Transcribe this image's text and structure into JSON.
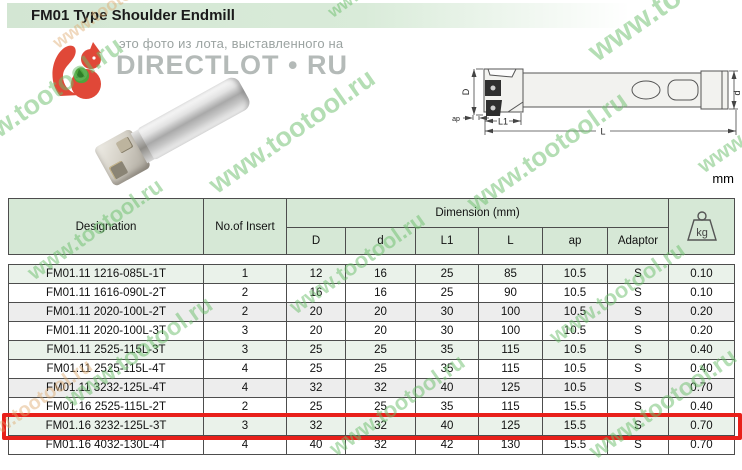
{
  "page": {
    "title": "FM01 Type Shoulder Endmill",
    "units_label": "mm"
  },
  "watermark": {
    "caption": "это фото из лота, выставленного на",
    "brand": "DIRECTLOT • RU",
    "tile": "www.tootool.ru"
  },
  "diagram": {
    "labels": {
      "D": "D",
      "d": "d",
      "L1": "L1",
      "L": "L",
      "ap": "ap"
    }
  },
  "table": {
    "headers": {
      "designation": "Designation",
      "no_of_insert": "No.of Insert",
      "dimension_group": "Dimension (mm)",
      "dims": [
        "D",
        "d",
        "L1",
        "L",
        "ap",
        "Adaptor"
      ],
      "weight_unit": "kg"
    },
    "highlight_color": "#e8201a",
    "rows": [
      {
        "designation": "FM01.11 1216-085L-1T",
        "inserts": "1",
        "D": "12",
        "d": "16",
        "L1": "25",
        "L": "85",
        "ap": "10.5",
        "adaptor": "S",
        "kg": "0.10",
        "highlight": false
      },
      {
        "designation": "FM01.11 1616-090L-2T",
        "inserts": "2",
        "D": "16",
        "d": "16",
        "L1": "25",
        "L": "90",
        "ap": "10.5",
        "adaptor": "S",
        "kg": "0.10",
        "highlight": false
      },
      {
        "designation": "FM01.11 2020-100L-2T",
        "inserts": "2",
        "D": "20",
        "d": "20",
        "L1": "30",
        "L": "100",
        "ap": "10.5",
        "adaptor": "S",
        "kg": "0.20",
        "highlight": false
      },
      {
        "designation": "FM01.11 2020-100L-3T",
        "inserts": "3",
        "D": "20",
        "d": "20",
        "L1": "30",
        "L": "100",
        "ap": "10.5",
        "adaptor": "S",
        "kg": "0.20",
        "highlight": false
      },
      {
        "designation": "FM01.11 2525-115L-3T",
        "inserts": "3",
        "D": "25",
        "d": "25",
        "L1": "35",
        "L": "115",
        "ap": "10.5",
        "adaptor": "S",
        "kg": "0.40",
        "highlight": false
      },
      {
        "designation": "FM01.11 2525-115L-4T",
        "inserts": "4",
        "D": "25",
        "d": "25",
        "L1": "35",
        "L": "115",
        "ap": "10.5",
        "adaptor": "S",
        "kg": "0.40",
        "highlight": false
      },
      {
        "designation": "FM01.11 3232-125L-4T",
        "inserts": "4",
        "D": "32",
        "d": "32",
        "L1": "40",
        "L": "125",
        "ap": "10.5",
        "adaptor": "S",
        "kg": "0.70",
        "highlight": false
      },
      {
        "designation": "FM01.16 2525-115L-2T",
        "inserts": "2",
        "D": "25",
        "d": "25",
        "L1": "35",
        "L": "115",
        "ap": "15.5",
        "adaptor": "S",
        "kg": "0.40",
        "highlight": false
      },
      {
        "designation": "FM01.16 3232-125L-3T",
        "inserts": "3",
        "D": "32",
        "d": "32",
        "L1": "40",
        "L": "125",
        "ap": "15.5",
        "adaptor": "S",
        "kg": "0.70",
        "highlight": true
      },
      {
        "designation": "FM01.16 4032-130L-4T",
        "inserts": "4",
        "D": "40",
        "d": "32",
        "L1": "42",
        "L": "130",
        "ap": "15.5",
        "adaptor": "S",
        "kg": "0.70",
        "highlight": false
      }
    ]
  }
}
